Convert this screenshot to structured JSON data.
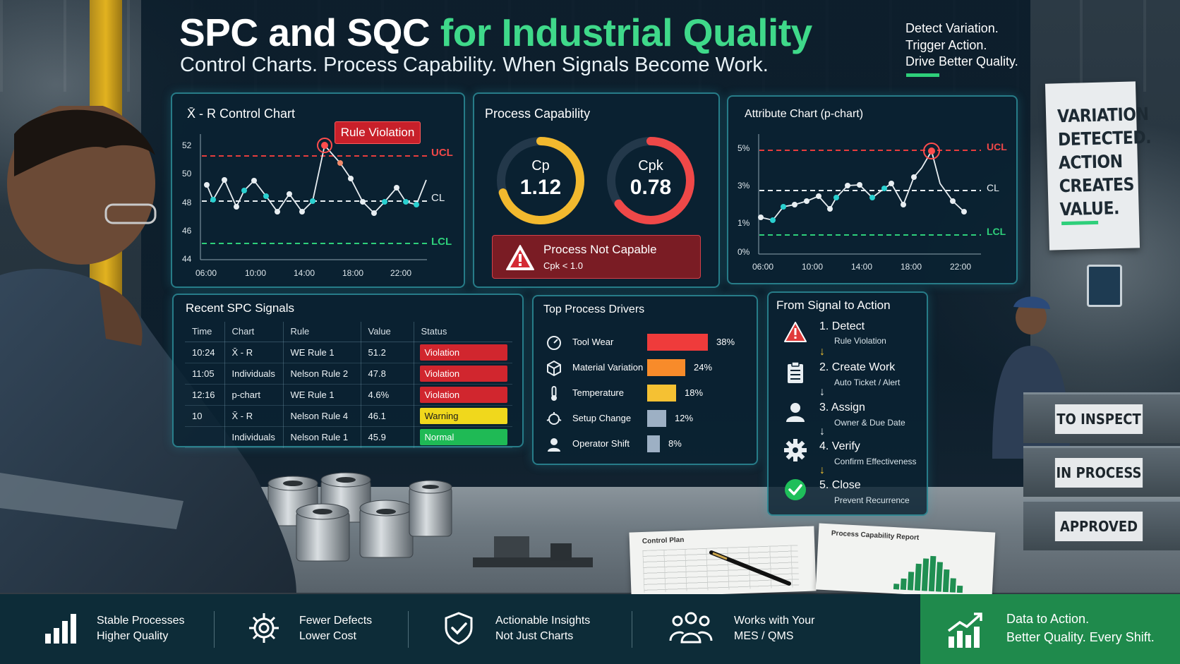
{
  "header": {
    "title_part1": "SPC and SQC",
    "title_part2": "for Industrial Quality",
    "subtitle": "Control Charts. Process Capability. When Signals Become Work.",
    "tagline": [
      "Detect Variation.",
      "Trigger Action.",
      "Drive Better Quality."
    ]
  },
  "xbar_chart": {
    "title": "X̄ - R Control Chart",
    "badge": "Rule Violation",
    "ucl_label": "UCL",
    "cl_label": "CL",
    "lcl_label": "LCL",
    "y_ticks": [
      "52",
      "50",
      "48",
      "46",
      "44"
    ],
    "x_ticks": [
      "06:00",
      "10:00",
      "14:00",
      "18:00",
      "22:00"
    ]
  },
  "capability": {
    "title": "Process Capability",
    "cp_label": "Cp",
    "cp_value": "1.12",
    "cpk_label": "Cpk",
    "cpk_value": "0.78",
    "alert_title": "Process Not Capable",
    "alert_sub": "Cpk < 1.0",
    "colors": {
      "cp": "#f2b92e",
      "cpk": "#ef4848"
    }
  },
  "p_chart": {
    "title": "Attribute Chart (p-chart)",
    "ucl_label": "UCL",
    "cl_label": "CL",
    "lcl_label": "LCL",
    "y_ticks": [
      "5%",
      "3%",
      "1%",
      "0%"
    ],
    "x_ticks": [
      "06:00",
      "10:00",
      "14:00",
      "18:00",
      "22:00"
    ]
  },
  "signals": {
    "title": "Recent SPC Signals",
    "columns": [
      "Time",
      "Chart",
      "Rule",
      "Value",
      "Status"
    ],
    "rows": [
      {
        "time": "10:24",
        "chart": "X̄ - R",
        "rule": "WE Rule 1",
        "value": "51.2",
        "status": "Violation",
        "color": "#d1262e"
      },
      {
        "time": "11:05",
        "chart": "Individuals",
        "rule": "Nelson Rule 2",
        "value": "47.8",
        "status": "Violation",
        "color": "#d1262e"
      },
      {
        "time": "12:16",
        "chart": "p-chart",
        "rule": "WE Rule 1",
        "value": "4.6%",
        "status": "Violation",
        "color": "#d1262e"
      },
      {
        "time": "10",
        "chart": "X̄ - R",
        "rule": "Nelson Rule 4",
        "value": "46.1",
        "status": "Warning",
        "color": "#f0d81c"
      },
      {
        "time": "",
        "chart": "Individuals",
        "rule": "Nelson Rule 1",
        "value": "45.9",
        "status": "Normal",
        "color": "#1fba55"
      }
    ]
  },
  "drivers": {
    "title": "Top Process Drivers",
    "items": [
      {
        "name": "Tool Wear",
        "pct": "38%",
        "value": 38,
        "color": "#ef3b3b",
        "icon": "gauge-icon"
      },
      {
        "name": "Material Variation",
        "pct": "24%",
        "value": 24,
        "color": "#f88b2a",
        "icon": "cube-icon"
      },
      {
        "name": "Temperature",
        "pct": "18%",
        "value": 18,
        "color": "#f5c133",
        "icon": "thermometer-icon"
      },
      {
        "name": "Setup Change",
        "pct": "12%",
        "value": 12,
        "color": "#9db0c4",
        "icon": "setup-icon"
      },
      {
        "name": "Operator Shift",
        "pct": "8%",
        "value": 8,
        "color": "#9db0c4",
        "icon": "person-icon"
      }
    ]
  },
  "workflow": {
    "title": "From Signal to Action",
    "steps": [
      {
        "label": "1. Detect",
        "sub": "Rule Violation"
      },
      {
        "label": "2. Create Work",
        "sub": "Auto Ticket / Alert"
      },
      {
        "label": "3. Assign",
        "sub": "Owner & Due Date"
      },
      {
        "label": "4. Verify",
        "sub": "Confirm Effectiveness"
      },
      {
        "label": "5. Close",
        "sub": "Prevent Recurrence"
      }
    ]
  },
  "sign": {
    "lines": [
      "VARIATION",
      "DETECTED.",
      "ACTION",
      "CREATES",
      "VALUE."
    ]
  },
  "bins": [
    "TO INSPECT",
    "IN PROCESS",
    "APPROVED"
  ],
  "papers": {
    "left": "Control Plan",
    "right": "Process Capability Report"
  },
  "footer": {
    "items": [
      {
        "line1": "Stable Processes",
        "line2": "Higher Quality",
        "icon": "bar-chart-icon"
      },
      {
        "line1": "Fewer Defects",
        "line2": "Lower Cost",
        "icon": "gear-icon"
      },
      {
        "line1": "Actionable Insights",
        "line2": "Not Just Charts",
        "icon": "shield-check-icon"
      },
      {
        "line1": "Works with Your",
        "line2": "MES / QMS",
        "icon": "team-icon"
      }
    ],
    "cta_line1": "Data to Action.",
    "cta_line2": "Better Quality. Every Shift."
  }
}
